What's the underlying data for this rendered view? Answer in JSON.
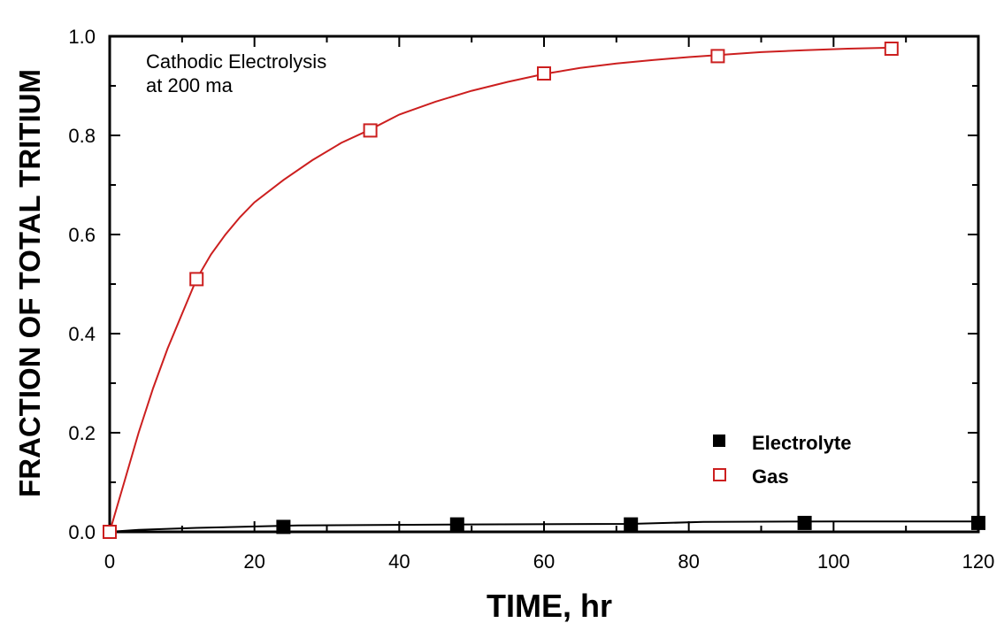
{
  "chart_data": {
    "type": "line",
    "title": "",
    "xlabel": "TIME, hr",
    "ylabel": "FRACTION OF TOTAL TRITIUM",
    "xlim": [
      0,
      120
    ],
    "ylim": [
      0,
      1.0
    ],
    "x_ticks": [
      0,
      20,
      40,
      60,
      80,
      100,
      120
    ],
    "y_ticks": [
      0.0,
      0.2,
      0.4,
      0.6,
      0.8,
      1.0
    ],
    "x_tick_labels": [
      "0",
      "20",
      "40",
      "60",
      "80",
      "100",
      "120"
    ],
    "y_tick_labels": [
      "0.0",
      "0.2",
      "0.4",
      "0.6",
      "0.8",
      "1.0"
    ],
    "grid": false,
    "legend_position": "bottom-right",
    "annotation": [
      "Cathodic Electrolysis",
      "at 200 ma"
    ],
    "series": [
      {
        "name": "Electrolyte",
        "color": "#000000",
        "marker": "filled-square",
        "points": [
          {
            "x": 0,
            "y": 0.0
          },
          {
            "x": 24,
            "y": 0.01
          },
          {
            "x": 48,
            "y": 0.015
          },
          {
            "x": 72,
            "y": 0.015
          },
          {
            "x": 96,
            "y": 0.018
          },
          {
            "x": 120,
            "y": 0.018
          }
        ],
        "curve": [
          [
            0,
            0.0
          ],
          [
            4,
            0.004
          ],
          [
            12,
            0.008
          ],
          [
            26,
            0.013
          ],
          [
            50,
            0.015
          ],
          [
            72,
            0.016
          ],
          [
            82,
            0.02
          ],
          [
            100,
            0.021
          ],
          [
            120,
            0.021
          ]
        ]
      },
      {
        "name": "Gas",
        "color": "#cc1f1f",
        "marker": "open-square",
        "points": [
          {
            "x": 0,
            "y": 0.0
          },
          {
            "x": 12,
            "y": 0.51
          },
          {
            "x": 36,
            "y": 0.81
          },
          {
            "x": 60,
            "y": 0.925
          },
          {
            "x": 84,
            "y": 0.96
          },
          {
            "x": 108,
            "y": 0.975
          }
        ],
        "curve": [
          [
            0,
            0.0
          ],
          [
            1,
            0.05
          ],
          [
            2,
            0.1
          ],
          [
            4,
            0.2
          ],
          [
            6,
            0.29
          ],
          [
            8,
            0.37
          ],
          [
            10,
            0.44
          ],
          [
            12,
            0.51
          ],
          [
            14,
            0.56
          ],
          [
            16,
            0.6
          ],
          [
            18,
            0.635
          ],
          [
            20,
            0.665
          ],
          [
            24,
            0.71
          ],
          [
            28,
            0.75
          ],
          [
            32,
            0.785
          ],
          [
            36,
            0.812
          ],
          [
            40,
            0.842
          ],
          [
            45,
            0.868
          ],
          [
            50,
            0.89
          ],
          [
            55,
            0.908
          ],
          [
            60,
            0.924
          ],
          [
            65,
            0.936
          ],
          [
            70,
            0.945
          ],
          [
            75,
            0.952
          ],
          [
            80,
            0.958
          ],
          [
            84,
            0.962
          ],
          [
            90,
            0.968
          ],
          [
            96,
            0.972
          ],
          [
            102,
            0.975
          ],
          [
            108,
            0.977
          ]
        ]
      }
    ]
  }
}
